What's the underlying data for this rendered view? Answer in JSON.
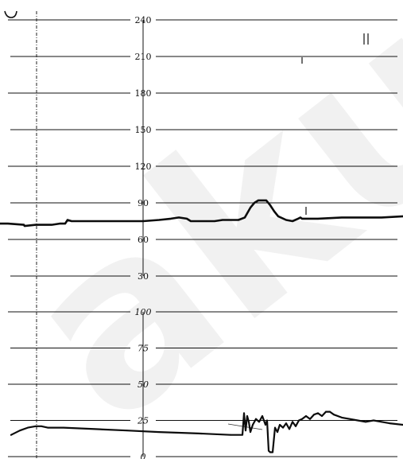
{
  "chart_data": [
    {
      "type": "line",
      "title": "",
      "xlabel": "",
      "ylabel": "",
      "yticks": [
        "240",
        "210",
        "180",
        "150",
        "120",
        "90",
        "60",
        "30"
      ],
      "ylim": [
        30,
        240
      ],
      "grid": true,
      "series": [
        {
          "x": [
            0,
            10,
            30,
            31,
            45,
            65,
            75,
            82,
            85,
            90,
            110,
            120,
            140,
            160,
            180,
            200,
            215,
            225,
            235,
            240,
            250,
            260,
            270,
            280,
            300,
            308,
            315,
            320,
            325,
            330,
            335,
            340,
            345,
            350,
            360,
            368,
            375,
            378,
            380,
            385,
            400,
            430,
            460,
            480,
            507
          ],
          "values": [
            73,
            73,
            72,
            71,
            72,
            72,
            73,
            73,
            76,
            75,
            75,
            75,
            75,
            75,
            75,
            76,
            77,
            78,
            77,
            75,
            75,
            75,
            75,
            76,
            76,
            78,
            86,
            90,
            92,
            92,
            92,
            88,
            83,
            79,
            76,
            75,
            77,
            78,
            77,
            77,
            77,
            78,
            78,
            78,
            79
          ]
        }
      ]
    },
    {
      "type": "line",
      "title": "",
      "xlabel": "",
      "ylabel": "",
      "yticks": [
        "100",
        "75",
        "50",
        "25",
        "0"
      ],
      "ylim": [
        0,
        100
      ],
      "grid": true,
      "series": [
        {
          "x": [
            14,
            25,
            35,
            45,
            52,
            60,
            80,
            120,
            160,
            200,
            250,
            290,
            305,
            307,
            309,
            311,
            313,
            315,
            318,
            322,
            326,
            330,
            334,
            336,
            338,
            340,
            343,
            346,
            349,
            352,
            356,
            360,
            364,
            368,
            372,
            376,
            380,
            385,
            390,
            395,
            400,
            405,
            410,
            415,
            420,
            430,
            440,
            450,
            460,
            470,
            480,
            490,
            507
          ],
          "values": [
            15,
            18,
            20,
            21,
            21,
            20,
            20,
            19,
            18,
            17,
            16,
            15,
            15,
            30,
            18,
            28,
            24,
            17,
            22,
            26,
            24,
            28,
            22,
            25,
            4,
            3,
            3,
            20,
            17,
            22,
            20,
            23,
            19,
            24,
            21,
            25,
            26,
            28,
            26,
            29,
            30,
            28,
            31,
            31,
            29,
            27,
            26,
            25,
            24,
            25,
            24,
            23,
            22
          ]
        }
      ]
    }
  ]
}
